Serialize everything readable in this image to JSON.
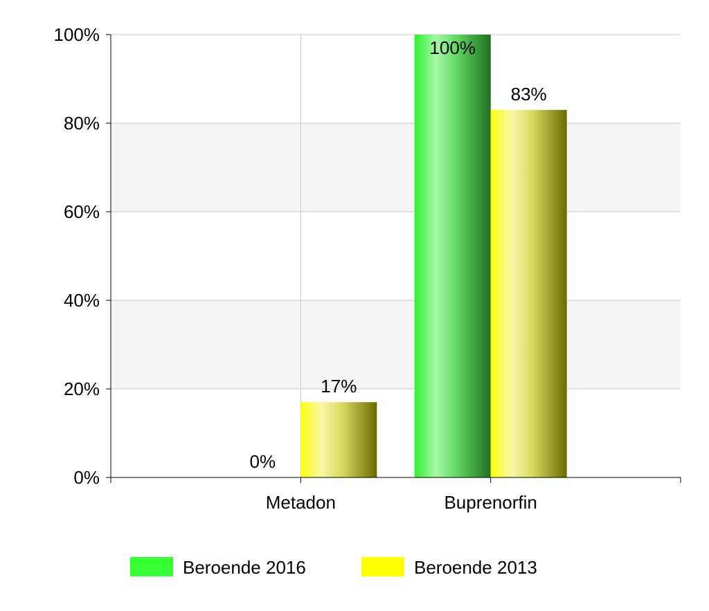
{
  "chart_data": {
    "type": "bar",
    "title": "",
    "xlabel": "",
    "ylabel": "",
    "categories": [
      "Metadon",
      "Buprenorfin"
    ],
    "series": [
      {
        "name": "Beroende 2016",
        "values": [
          0,
          100
        ],
        "data_labels": [
          "0%",
          "100%"
        ],
        "color": "#33ff33"
      },
      {
        "name": "Beroende 2013",
        "values": [
          17,
          83
        ],
        "data_labels": [
          "17%",
          "83%"
        ],
        "color": "#ffff00"
      }
    ],
    "ylim": [
      0,
      100
    ],
    "y_ticks": [
      0,
      20,
      40,
      60,
      80,
      100
    ],
    "y_tick_labels": [
      "0%",
      "20%",
      "40%",
      "60%",
      "80%",
      "100%"
    ],
    "grid": true,
    "alternate_band_color": "#f5f5f5",
    "legend_position": "bottom"
  }
}
